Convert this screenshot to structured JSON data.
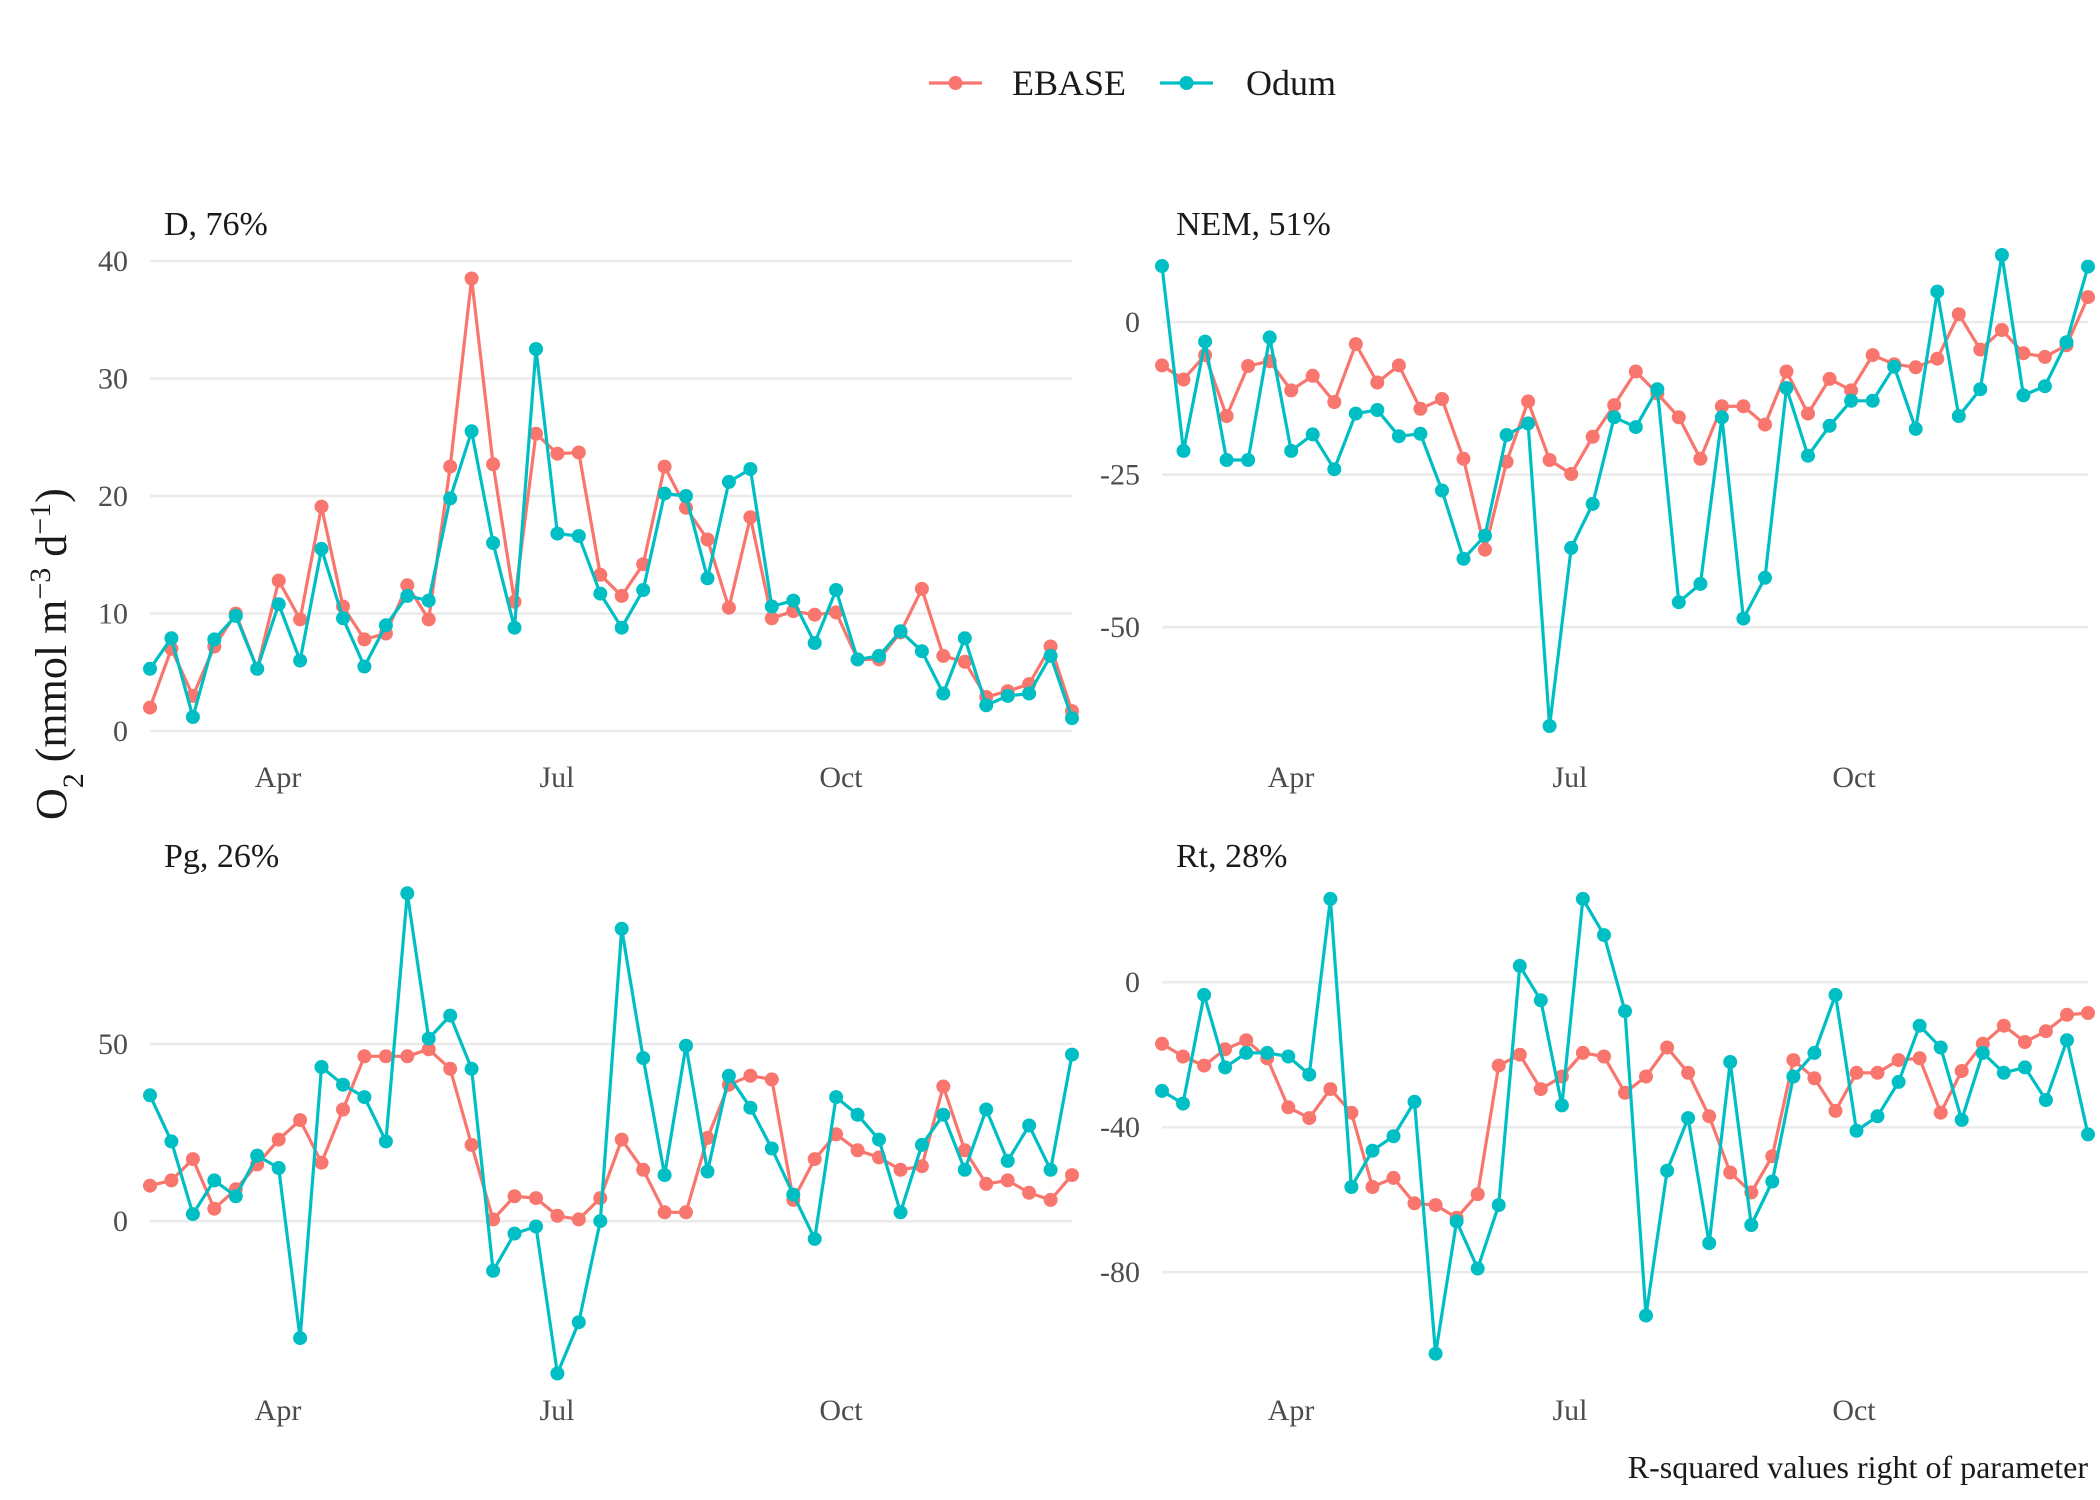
{
  "colors": {
    "EBASE": "#F8766D",
    "Odum": "#00BFC4"
  },
  "legend": {
    "items": [
      "EBASE",
      "Odum"
    ]
  },
  "ylabel": {
    "base": "O",
    "sub": "2",
    "unit_prefix": " (mmol m",
    "sup1": "−3",
    "unit_mid": " d",
    "sup2": "−1",
    "close": ")"
  },
  "caption": "R-squared values right of parameter",
  "chart_data": [
    {
      "type": "line",
      "title": "D, 76%",
      "x_ticks": [
        "Apr",
        "Jul",
        "Oct"
      ],
      "y_ticks": [
        0,
        10,
        20,
        30,
        40
      ],
      "ylim": [
        -0.5,
        40.5
      ],
      "series": [
        {
          "name": "EBASE",
          "values": [
            2,
            7,
            3,
            7.2,
            10,
            5.3,
            12.8,
            9.5,
            19.1,
            10.6,
            7.8,
            8.3,
            12.4,
            9.5,
            22.5,
            38.5,
            22.7,
            11,
            25.3,
            23.6,
            23.7,
            13.3,
            11.5,
            14.2,
            22.5,
            19,
            16.3,
            10.5,
            18.2,
            9.6,
            10.2,
            9.9,
            10.1,
            6.1,
            6.1,
            8.4,
            12.1,
            6.4,
            5.9,
            2.9,
            3.4,
            4,
            7.2,
            1.7
          ]
        },
        {
          "name": "Odum",
          "values": [
            5.3,
            7.9,
            1.2,
            7.8,
            9.8,
            5.3,
            10.8,
            6,
            15.5,
            9.6,
            5.5,
            9,
            11.5,
            11.1,
            19.8,
            25.5,
            16,
            8.8,
            32.5,
            16.8,
            16.6,
            11.7,
            8.8,
            12,
            20.2,
            20,
            13,
            21.2,
            22.3,
            10.6,
            11.1,
            7.5,
            12,
            6.1,
            6.4,
            8.5,
            6.8,
            3.2,
            7.9,
            2.2,
            3,
            3.2,
            6.4,
            1.1
          ]
        }
      ]
    },
    {
      "type": "line",
      "title": "NEM, 51%",
      "x_ticks": [
        "Apr",
        "Jul",
        "Oct"
      ],
      "y_ticks": [
        -50,
        -25,
        0
      ],
      "ylim": [
        -68,
        11
      ],
      "series": [
        {
          "name": "EBASE",
          "values": [
            -7.1,
            -9.4,
            -5.4,
            -15.4,
            -7.2,
            -6.4,
            -11.2,
            -8.8,
            -13.1,
            -3.6,
            -9.9,
            -7.1,
            -14.2,
            -12.6,
            -22.4,
            -37.3,
            -22.9,
            -13,
            -22.6,
            -24.9,
            -18.8,
            -13.6,
            -8.1,
            -11.7,
            -15.6,
            -22.4,
            -13.8,
            -13.8,
            -16.8,
            -8.1,
            -15,
            -9.3,
            -11.2,
            -5.4,
            -6.9,
            -7.4,
            -6,
            1.3,
            -4.5,
            -1.3,
            -5.1,
            -5.7,
            -3.8,
            4.1
          ]
        },
        {
          "name": "Odum",
          "values": [
            9.2,
            -21.1,
            -3.2,
            -22.6,
            -22.6,
            -2.5,
            -21.1,
            -18.4,
            -24.1,
            -15,
            -14.4,
            -18.7,
            -18.3,
            -27.6,
            -38.8,
            -35,
            -18.5,
            -16.6,
            -66.2,
            -37,
            -29.8,
            -15.6,
            -17.2,
            -11,
            -45.9,
            -42.9,
            -15.6,
            -48.6,
            -41.9,
            -10.8,
            -21.9,
            -17,
            -12.9,
            -12.9,
            -7.3,
            -17.5,
            5,
            -15.4,
            -11,
            11,
            -12,
            -10.5,
            -3.3,
            9.1
          ]
        }
      ]
    },
    {
      "type": "line",
      "title": "Pg, 26%",
      "x_ticks": [
        "Apr",
        "Jul",
        "Oct"
      ],
      "y_ticks": [
        0,
        50
      ],
      "ylim": [
        -42,
        94
      ],
      "series": [
        {
          "name": "EBASE",
          "values": [
            10,
            11.5,
            17.5,
            3.5,
            9,
            16,
            23,
            28.5,
            16.5,
            31.5,
            46.5,
            46.5,
            46.5,
            48.5,
            43,
            21.5,
            0.5,
            7,
            6.5,
            1.5,
            0.5,
            6.5,
            23,
            14.5,
            2.5,
            2.5,
            23.5,
            38.5,
            41,
            40,
            6,
            17.5,
            24.5,
            20,
            18,
            14.5,
            15.5,
            38,
            20,
            10.5,
            11.5,
            8,
            6,
            13
          ]
        },
        {
          "name": "Odum",
          "values": [
            35.5,
            22.5,
            2,
            11.5,
            7,
            18.5,
            15,
            -33,
            43.5,
            38.5,
            35,
            22.5,
            92.5,
            51.5,
            58,
            43,
            -14,
            -3.5,
            -1.5,
            -43,
            -28.5,
            0,
            82.5,
            46,
            13,
            49.5,
            14,
            41,
            32,
            20.5,
            7.5,
            -5,
            35,
            30,
            23,
            2.5,
            21.5,
            30,
            14.5,
            31.5,
            17,
            27,
            14.5,
            47
          ]
        }
      ]
    },
    {
      "type": "line",
      "title": "Rt, 28%",
      "x_ticks": [
        "Apr",
        "Jul",
        "Oct"
      ],
      "y_ticks": [
        -80,
        -40,
        0
      ],
      "ylim": [
        -107,
        26
      ],
      "series": [
        {
          "name": "EBASE",
          "values": [
            -17,
            -20.5,
            -23,
            -18.5,
            -16,
            -21,
            -34.5,
            -37.5,
            -29.5,
            -36,
            -56.5,
            -54,
            -61,
            -61.5,
            -65,
            -58.5,
            -23,
            -20,
            -29.5,
            -26,
            -19.5,
            -20.5,
            -30.5,
            -26,
            -18,
            -25,
            -37,
            -52.5,
            -58,
            -48,
            -21.5,
            -26.5,
            -35.5,
            -25,
            -25,
            -21.5,
            -21,
            -36,
            -24.5,
            -17,
            -12,
            -16.5,
            -13.5,
            -9,
            -8.5
          ]
        },
        {
          "name": "Odum",
          "values": [
            -30,
            -33.5,
            -3.5,
            -23.5,
            -19.5,
            -19.5,
            -20.5,
            -25.5,
            23,
            -56.5,
            -46.5,
            -42.5,
            -33,
            -102.5,
            -66,
            -79,
            -61.5,
            4.5,
            -5,
            -34,
            23,
            13,
            -8,
            -92,
            -52,
            -37.5,
            -72,
            -22,
            -67,
            -55,
            -26,
            -19.5,
            -3.5,
            -41,
            -37,
            -27.5,
            -12,
            -18,
            -38,
            -19.5,
            -25,
            -23.5,
            -32.5,
            -16,
            -42
          ]
        }
      ]
    }
  ]
}
